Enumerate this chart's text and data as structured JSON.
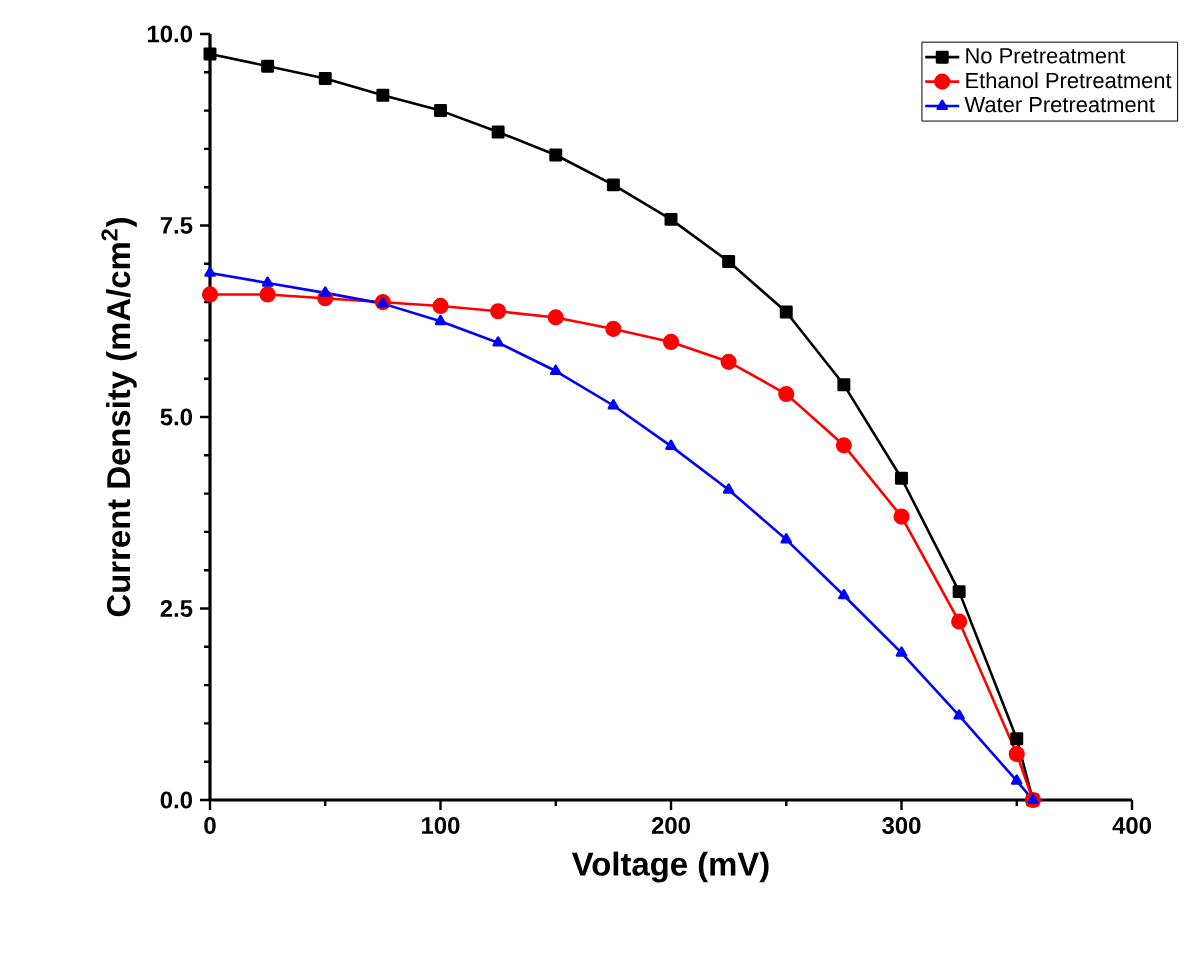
{
  "chart_data": {
    "type": "line",
    "xlabel": "Voltage (mV)",
    "ylabel": "Current Density (mA/cm$^{2}$)",
    "x": [
      0,
      25,
      50,
      75,
      100,
      125,
      150,
      175,
      200,
      225,
      250,
      275,
      300,
      325,
      350,
      357
    ],
    "series": [
      {
        "name": "No Pretreatment",
        "color": "#000000",
        "marker": "square",
        "values": [
          9.74,
          9.58,
          9.42,
          9.2,
          9.0,
          8.72,
          8.42,
          8.03,
          7.58,
          7.03,
          6.37,
          5.42,
          4.2,
          2.72,
          0.8,
          0
        ]
      },
      {
        "name": "Ethanol Pretreatment",
        "color": "#ff0000",
        "marker": "circle",
        "values": [
          6.6,
          6.6,
          6.55,
          6.5,
          6.45,
          6.38,
          6.3,
          6.15,
          5.98,
          5.72,
          5.3,
          4.63,
          3.7,
          2.33,
          0.6,
          0
        ]
      },
      {
        "name": "Water Pretreatment",
        "color": "#0000ff",
        "marker": "triangle",
        "values": [
          6.88,
          6.75,
          6.62,
          6.48,
          6.25,
          5.97,
          5.6,
          5.15,
          4.62,
          4.05,
          3.4,
          2.67,
          1.92,
          1.1,
          0.25,
          0
        ]
      }
    ],
    "xlim": [
      0,
      400
    ],
    "ylim": [
      0,
      10
    ],
    "xticks": [
      0,
      100,
      200,
      300,
      400
    ],
    "yticks": [
      {
        "value": 0,
        "label": "0.0"
      },
      {
        "value": 2.5,
        "label": "2.5"
      },
      {
        "value": 5,
        "label": "5.0"
      },
      {
        "value": 7.5,
        "label": "7.5"
      },
      {
        "value": 10,
        "label": "10.0"
      }
    ],
    "legend": "top right",
    "grid": false,
    "line_style": "solid"
  }
}
